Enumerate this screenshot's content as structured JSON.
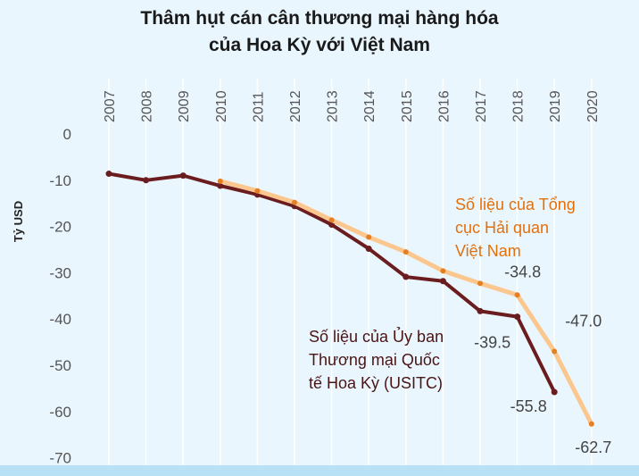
{
  "title_line1": "Thâm hụt cán cân thương mại hàng hóa",
  "title_line2": "của Hoa Kỳ với Việt Nam",
  "chart_data": {
    "type": "line",
    "x": [
      2007,
      2008,
      2009,
      2010,
      2011,
      2012,
      2013,
      2014,
      2015,
      2016,
      2017,
      2018,
      2019,
      2020
    ],
    "x_tick_labels": [
      "2007",
      "2008",
      "2009",
      "2010",
      "2011",
      "2012",
      "2013",
      "2014",
      "2015",
      "2016",
      "2017",
      "2018",
      "2019",
      "2020"
    ],
    "y_ticks": [
      0,
      -10,
      -20,
      -30,
      -40,
      -50,
      -60,
      -70
    ],
    "y_tick_labels": [
      "0",
      "-10",
      "-20",
      "-30",
      "-40",
      "-50",
      "-60",
      "-70"
    ],
    "ylim": [
      -70,
      0
    ],
    "ylabel": "Tỷ USD",
    "x_axis_position": "top",
    "grid": "vertical",
    "series": [
      {
        "name": "Số liệu của Ủy ban Thương mại Quốc tế Hoa Kỳ (USITC)",
        "name_lines": [
          "Số liệu của Ủy ban",
          "Thương mại Quốc",
          "tế Hoa Kỳ (USITC)"
        ],
        "color": "#6b1c1e",
        "x": [
          2007,
          2008,
          2009,
          2010,
          2011,
          2012,
          2013,
          2014,
          2015,
          2016,
          2017,
          2018,
          2019
        ],
        "values": [
          -8.6,
          -10.0,
          -9.0,
          -11.2,
          -13.1,
          -15.6,
          -19.6,
          -24.8,
          -30.9,
          -31.8,
          -38.3,
          -39.5,
          -55.8
        ]
      },
      {
        "name": "Số liệu của Tổng cục Hải quan Việt Nam",
        "name_lines": [
          "Số liệu của Tổng",
          "cục Hải quan",
          "Việt Nam"
        ],
        "color": "#fbc78f",
        "marker_color": "#e67e22",
        "x": [
          2010,
          2011,
          2012,
          2013,
          2014,
          2015,
          2016,
          2017,
          2018,
          2019,
          2020
        ],
        "values": [
          -10.2,
          -12.3,
          -14.8,
          -18.6,
          -22.3,
          -25.5,
          -29.6,
          -32.3,
          -34.8,
          -47.0,
          -62.7
        ]
      }
    ],
    "data_labels": [
      "-34.8",
      "-47.0",
      "-62.7",
      "-39.5",
      "-55.8"
    ]
  },
  "colors": {
    "background": "#eaf6fd",
    "grid": "#ffffff",
    "usitc_line": "#6b1c1e",
    "gso_line": "#fbc78f",
    "gso_marker": "#e67e22",
    "gso_text": "#e2700d"
  }
}
